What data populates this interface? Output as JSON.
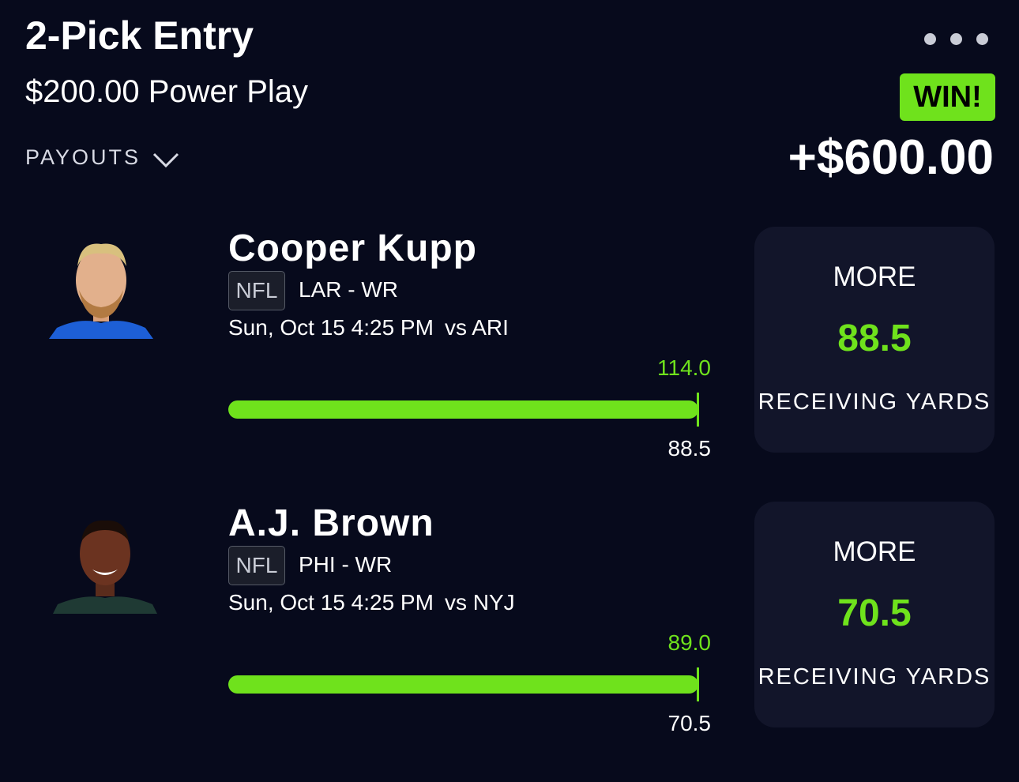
{
  "header": {
    "title": "2-Pick Entry",
    "subtitle": "$200.00 Power Play",
    "payouts_label": "PAYOUTS",
    "status": "WIN!",
    "payout": "+$600.00"
  },
  "picks": [
    {
      "player": "Cooper Kupp",
      "league": "NFL",
      "team_position": "LAR - WR",
      "date": "Sun, Oct 15 4:25 PM",
      "opponent": "vs ARI",
      "actual": "114.0",
      "line": "88.5",
      "direction": "MORE",
      "stat": "RECEIVING YARDS"
    },
    {
      "player": "A.J. Brown",
      "league": "NFL",
      "team_position": "PHI - WR",
      "date": "Sun, Oct 15 4:25 PM",
      "opponent": "vs NYJ",
      "actual": "89.0",
      "line": "70.5",
      "direction": "MORE",
      "stat": "RECEIVING YARDS"
    }
  ]
}
